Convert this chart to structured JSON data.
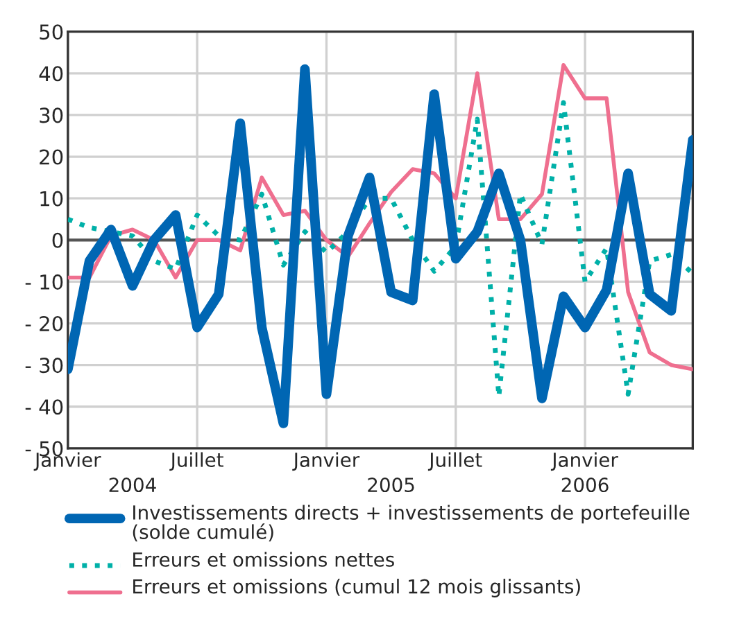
{
  "chart_data": {
    "type": "line",
    "categories": [
      "Janvier",
      null,
      null,
      null,
      null,
      null,
      "Juillet",
      null,
      null,
      null,
      null,
      null,
      "Janvier",
      null,
      null,
      null,
      null,
      null,
      "Juillet",
      null,
      null,
      null,
      null,
      null,
      "Janvier",
      null,
      null,
      null,
      null,
      null
    ],
    "series": [
      {
        "name": "Investissements directs + investissements de portefeuille (solde cumulé)",
        "color": "#0066b3",
        "line_style": "solid",
        "values": [
          -31,
          -5,
          2.5,
          -11,
          0,
          6,
          -21,
          -13,
          28,
          -21,
          -44,
          41,
          -37,
          1,
          15,
          -12.5,
          -14.5,
          35,
          -4.5,
          2,
          16,
          0,
          -38,
          -13.5,
          -21,
          -12,
          16,
          -13,
          -17,
          24
        ]
      },
      {
        "name": "Erreurs et omissions nettes",
        "color": "#00b0a8",
        "line_style": "dotted",
        "values": [
          5,
          3,
          2,
          1,
          -5,
          -7,
          6,
          1,
          0,
          11,
          -6,
          2,
          -3,
          2,
          10,
          10,
          0,
          -7.5,
          -1.5,
          29,
          -37.5,
          11,
          -1,
          33,
          -10,
          -2,
          -37,
          -5,
          -3.5,
          -8
        ]
      },
      {
        "name": "Erreurs et omissions (cumul 12 mois glissants)",
        "color": "#ef6f8f",
        "line_style": "solid",
        "values": [
          -9,
          -9,
          1,
          2.5,
          0,
          -9,
          0,
          0,
          -2.5,
          15,
          6,
          7,
          0,
          -4,
          4,
          11.5,
          17,
          16,
          10,
          40,
          5,
          5,
          11,
          42,
          34,
          34,
          -12.5,
          -27,
          -30,
          -31
        ]
      }
    ],
    "ylim": [
      -50,
      50
    ],
    "yticks": [
      {
        "value": -50,
        "label": "- 50"
      },
      {
        "value": -40,
        "label": "- 40"
      },
      {
        "value": -30,
        "label": "- 30"
      },
      {
        "value": -20,
        "label": "- 20"
      },
      {
        "value": -10,
        "label": "- 10"
      },
      0,
      10,
      20,
      30,
      40,
      50
    ],
    "ref_lines": [
      {
        "axis": "y",
        "value": 0,
        "color": "#555555"
      }
    ],
    "annotations": [
      "2004",
      "2005",
      "2006"
    ],
    "grid": true,
    "legend": "bottom",
    "marker": "none"
  }
}
